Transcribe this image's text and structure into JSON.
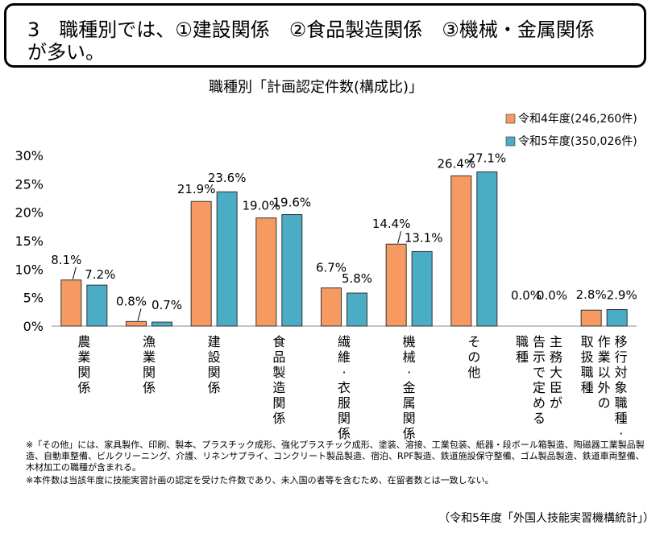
{
  "headline": {
    "line1": "3　職種別では、①建設関係　②食品製造関係　③機械・金属関係",
    "line2": "が多い。"
  },
  "chart_data": {
    "type": "bar",
    "title": "職種別「計画認定件数(構成比)」",
    "categories": [
      "農業関係",
      "漁業関係",
      "建設関係",
      "食品製造関係",
      "繊維・衣服関係",
      "機械・金属関係",
      "その他",
      "主務大臣が告示で定める職種",
      "移行対象職種・作業以外の取扱職種"
    ],
    "category_lines": [
      [
        "農業関係"
      ],
      [
        "漁業関係"
      ],
      [
        "建設関係"
      ],
      [
        "食品製造関係"
      ],
      [
        "繊維・衣服関係"
      ],
      [
        "機械・金属関係"
      ],
      [
        "その他"
      ],
      [
        "主務大臣が",
        "告示で定める",
        "職種"
      ],
      [
        "移行対象職種・",
        "作業以外の",
        "取扱職種"
      ]
    ],
    "series": [
      {
        "name": "令和4年度(246,260件)",
        "color": "#F79A62",
        "values": [
          8.1,
          0.8,
          21.9,
          19.0,
          6.7,
          14.4,
          26.4,
          0.0,
          2.8
        ],
        "labels": [
          "8.1%",
          "0.8%",
          "21.9%",
          "19.0%",
          "6.7%",
          "14.4%",
          "26.4%",
          "0.0%",
          "2.8%"
        ]
      },
      {
        "name": "令和5年度(350,026件)",
        "color": "#4BACC6",
        "values": [
          7.2,
          0.7,
          23.6,
          19.6,
          5.8,
          13.1,
          27.1,
          0.0,
          2.9
        ],
        "labels": [
          "7.2%",
          "0.7%",
          "23.6%",
          "19.6%",
          "5.8%",
          "13.1%",
          "27.1%",
          "0.0%",
          "2.9%"
        ]
      }
    ],
    "ylim": [
      0,
      30
    ],
    "yticks": [
      {
        "value": 0,
        "label": "0%"
      },
      {
        "value": 5,
        "label": "5%"
      },
      {
        "value": 10,
        "label": "10%"
      },
      {
        "value": 15,
        "label": "15%"
      },
      {
        "value": 20,
        "label": "20%"
      },
      {
        "value": 25,
        "label": "25%"
      },
      {
        "value": 30,
        "label": "30%"
      }
    ],
    "legend_position": "top-right",
    "grid": false,
    "bar_outline": "#333333"
  },
  "notes": [
    "※「その他」には、家具製作、印刷、製本、プラスチック成形、強化プラスチック成形、塗装、溶接、工業包装、紙器・段ボール箱製造、陶磁器工業製品製造、自動車整備、ビルクリーニング、介護、リネンサプライ、コンクリート製品製造、宿泊、RPF製造、鉄道施設保守整備、ゴム製品製造、鉄道車両整備、木材加工の職種が含まれる。",
    "※本件数は当該年度に技能実習計画の認定を受けた件数であり、未入国の者等を含むため、在留者数とは一致しない。"
  ],
  "source": "（令和5年度「外国人技能実習機構統計」）"
}
